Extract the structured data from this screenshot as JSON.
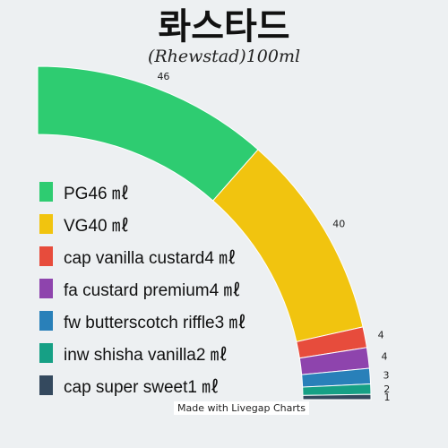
{
  "chart_data": {
    "type": "pie",
    "title": "롸스타드",
    "subtitle": "(Rhewstad)100ml",
    "categories": [
      "PG",
      "VG",
      "cap vanilla custard",
      "fa custard premium",
      "fw butterscotch riffle",
      "inw shisha vanilla",
      "cap super sweet"
    ],
    "values": [
      46,
      40,
      4,
      4,
      3,
      2,
      1
    ],
    "unit": "ml",
    "legend_labels": [
      "PG46 ㎖",
      "VG40 ㎖",
      "cap vanilla custard4 ㎖",
      "fa custard premium4 ㎖",
      "fw butterscotch riffle3 ㎖",
      "inw shisha vanilla2 ㎖",
      "cap super sweet1 ㎖"
    ],
    "data_labels": [
      "46",
      "40",
      "4",
      "4",
      "3",
      "2",
      "1"
    ],
    "colors": [
      "#2ecc71",
      "#f1c40f",
      "#e74c3c",
      "#8e44ad",
      "#2980b9",
      "#16a085",
      "#34495e"
    ],
    "legend_position": "left"
  },
  "credit": "Made with Livegap Charts"
}
